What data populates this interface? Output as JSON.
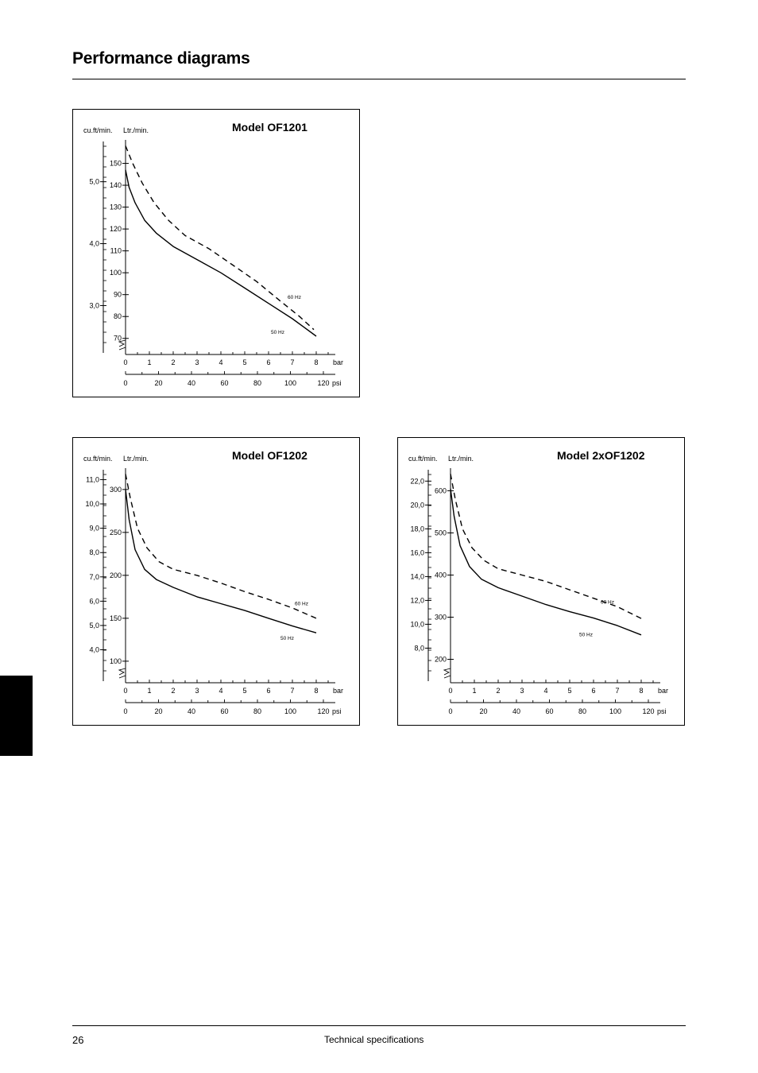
{
  "page": {
    "title": "Performance diagrams",
    "page_number": "26",
    "footer": "Technical specifications"
  },
  "chart_data": [
    {
      "type": "line",
      "title": "Model OF1201",
      "left_axis_label": "cu.ft/min.",
      "ylabel": "Ltr./min.",
      "xlabel": "bar",
      "x2label": "psi",
      "ylim": [
        67,
        160
      ],
      "xlim": [
        0,
        8.9
      ],
      "y_ticks": [
        70,
        80,
        90,
        100,
        110,
        120,
        130,
        140,
        150
      ],
      "cuft_ticks": [
        "5,0",
        "4,0",
        "3,0"
      ],
      "cuft_tick_values": [
        141.6,
        113.3,
        85.0
      ],
      "x_ticks": [
        0,
        1,
        2,
        3,
        4,
        5,
        6,
        7,
        8
      ],
      "psi_ticks": [
        0,
        20,
        40,
        60,
        80,
        100,
        120
      ],
      "series": [
        {
          "name": "60 Hz",
          "dash": true,
          "x": [
            0,
            0.3,
            0.7,
            1.2,
            1.8,
            2.5,
            3.5,
            4.5,
            5.5,
            6.5,
            7.3,
            7.9
          ],
          "y": [
            158,
            150,
            141,
            132,
            124,
            117,
            111,
            103.5,
            96,
            87,
            80,
            74
          ],
          "label_at": [
            6.8,
            88
          ]
        },
        {
          "name": "50 Hz",
          "dash": false,
          "x": [
            0,
            0.15,
            0.4,
            0.8,
            1.3,
            2,
            3,
            4,
            5,
            6,
            7,
            8
          ],
          "y": [
            147,
            139,
            132,
            124,
            118,
            112,
            106,
            100,
            93,
            86,
            79,
            71
          ],
          "label_at": [
            6.1,
            72
          ]
        }
      ]
    },
    {
      "type": "line",
      "title": "Model OF1202",
      "left_axis_label": "cu.ft/min.",
      "ylabel": "Ltr./min.",
      "xlabel": "bar",
      "x2label": "psi",
      "ylim": [
        86,
        323
      ],
      "xlim": [
        0,
        8.9
      ],
      "y_ticks": [
        100,
        150,
        200,
        250,
        300
      ],
      "cuft_ticks": [
        "11,0",
        "10,0",
        "9,0",
        "8,0",
        "7,0",
        "6,0",
        "5,0",
        "4,0"
      ],
      "cuft_tick_values": [
        311.5,
        283.2,
        254.9,
        226.5,
        198.2,
        169.9,
        141.6,
        113.3
      ],
      "x_ticks": [
        0,
        1,
        2,
        3,
        4,
        5,
        6,
        7,
        8
      ],
      "psi_ticks": [
        0,
        20,
        40,
        60,
        80,
        100,
        120
      ],
      "series": [
        {
          "name": "60 Hz",
          "dash": true,
          "x": [
            0,
            0.2,
            0.5,
            0.9,
            1.4,
            2,
            3,
            4,
            5,
            6,
            7,
            8
          ],
          "y": [
            318,
            290,
            255,
            232,
            216,
            207,
            200,
            191,
            181,
            172,
            162,
            150
          ],
          "label_at": [
            7.1,
            165
          ]
        },
        {
          "name": "50 Hz",
          "dash": false,
          "x": [
            0,
            0.15,
            0.4,
            0.8,
            1.3,
            2,
            3,
            4,
            5,
            6,
            7,
            8
          ],
          "y": [
            300,
            265,
            230,
            207,
            195,
            186,
            175,
            167,
            159,
            150,
            141,
            133
          ],
          "label_at": [
            6.5,
            125
          ]
        }
      ]
    },
    {
      "type": "line",
      "title": "Model 2xOF1202",
      "left_axis_label": "cu.ft/min.",
      "ylabel": "Ltr./min.",
      "xlabel": "bar",
      "x2label": "psi",
      "ylim": [
        167,
        650
      ],
      "xlim": [
        0,
        8.9
      ],
      "y_ticks": [
        200,
        300,
        400,
        500,
        600
      ],
      "cuft_ticks": [
        "22,0",
        "20,0",
        "18,0",
        "16,0",
        "14,0",
        "12,0",
        "10,0",
        "8,0"
      ],
      "cuft_tick_values": [
        623,
        566.3,
        509.7,
        453.1,
        396.4,
        339.8,
        283.2,
        226.5
      ],
      "x_ticks": [
        0,
        1,
        2,
        3,
        4,
        5,
        6,
        7,
        8
      ],
      "psi_ticks": [
        0,
        20,
        40,
        60,
        80,
        100,
        120
      ],
      "series": [
        {
          "name": "60 Hz",
          "dash": true,
          "x": [
            0,
            0.2,
            0.5,
            0.9,
            1.4,
            2,
            3,
            4,
            5,
            6,
            7,
            8
          ],
          "y": [
            640,
            580,
            510,
            465,
            435,
            415,
            400,
            385,
            365,
            345,
            325,
            297
          ],
          "label_at": [
            6.3,
            332
          ]
        },
        {
          "name": "50 Hz",
          "dash": false,
          "x": [
            0,
            0.15,
            0.4,
            0.8,
            1.3,
            2,
            3,
            4,
            5,
            6,
            7,
            8
          ],
          "y": [
            605,
            540,
            470,
            420,
            390,
            370,
            350,
            330,
            313,
            298,
            280,
            258
          ],
          "label_at": [
            5.4,
            255
          ]
        }
      ]
    }
  ]
}
